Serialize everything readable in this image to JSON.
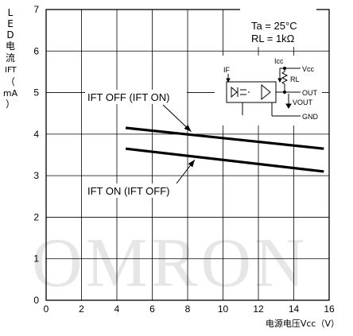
{
  "chart_data": {
    "type": "line",
    "xlabel": "电源电压Vcc（V）",
    "ylabel": [
      "L",
      "E",
      "D",
      "电",
      "流",
      "IFT",
      "（",
      "mA",
      "）"
    ],
    "xlim": [
      0,
      16
    ],
    "ylim": [
      0,
      7
    ],
    "xticks": [
      "0",
      "2",
      "4",
      "6",
      "8",
      "10",
      "12",
      "14",
      "16"
    ],
    "yticks": [
      "0",
      "1",
      "2",
      "3",
      "4",
      "5",
      "6",
      "7"
    ],
    "grid": true,
    "series": [
      {
        "name": "IFT OFF (IFT ON)",
        "x": [
          4.5,
          15.7
        ],
        "y": [
          4.15,
          3.65
        ]
      },
      {
        "name": "IFT ON (IFT OFF)",
        "x": [
          4.5,
          15.7
        ],
        "y": [
          3.65,
          3.1
        ]
      }
    ],
    "annotations": {
      "upper_label": "IFT OFF (IFT ON)",
      "lower_label": "IFT ON (IFT OFF)"
    },
    "conditions": {
      "ta": "Ta = 25°C",
      "rl": "RL = 1kΩ"
    },
    "circuit": {
      "if_label": "IF",
      "icc_label": "Icc",
      "vcc_label": "Vcc",
      "rl_label": "RL",
      "out_label": "OUT",
      "vout_label": "VOUT",
      "gnd_label": "GND"
    },
    "watermark": "OMRON"
  }
}
